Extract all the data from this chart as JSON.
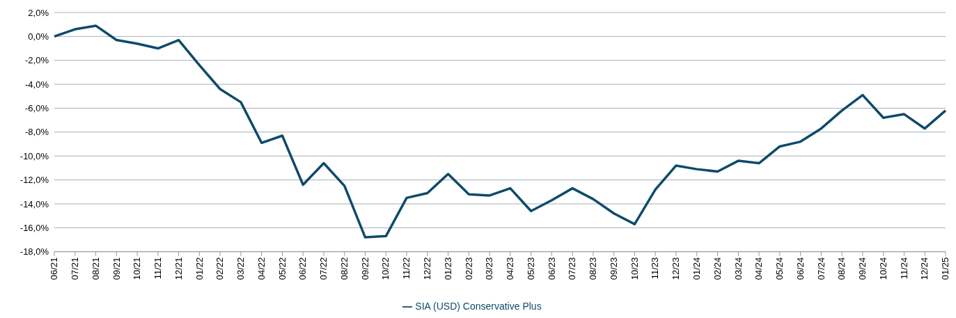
{
  "chart_data": {
    "type": "line",
    "categories": [
      "06/21",
      "07/21",
      "08/21",
      "09/21",
      "10/21",
      "11/21",
      "12/21",
      "01/22",
      "02/22",
      "03/22",
      "04/22",
      "05/22",
      "06/22",
      "07/22",
      "08/22",
      "09/22",
      "10/22",
      "11/22",
      "12/22",
      "01/23",
      "02/23",
      "03/23",
      "04/23",
      "05/23",
      "06/23",
      "07/23",
      "08/23",
      "09/23",
      "10/23",
      "11/23",
      "12/23",
      "01/24",
      "02/24",
      "03/24",
      "04/24",
      "05/24",
      "06/24",
      "07/24",
      "08/24",
      "09/24",
      "10/24",
      "11/24",
      "12/24",
      "01/25"
    ],
    "series": [
      {
        "name": "SIA (USD) Conservative Plus",
        "color": "#0e4a6b",
        "values": [
          0,
          0.6,
          0.9,
          -0.3,
          -0.6,
          -1.0,
          -0.3,
          -2.4,
          -4.4,
          -5.5,
          -8.9,
          -8.3,
          -12.4,
          -10.6,
          -12.5,
          -16.8,
          -16.7,
          -13.5,
          -13.1,
          -11.5,
          -13.2,
          -13.3,
          -12.7,
          -14.6,
          -13.7,
          -12.7,
          -13.6,
          -14.8,
          -15.7,
          -12.8,
          -10.8,
          -11.1,
          -11.3,
          -10.4,
          -10.6,
          -9.2,
          -8.8,
          -7.7,
          -6.2,
          -4.9,
          -6.8,
          -6.5,
          -7.7,
          -6.2
        ]
      }
    ],
    "ylim": [
      -18,
      2
    ],
    "yticks": [
      {
        "value": 2,
        "label": "2,0%"
      },
      {
        "value": 0,
        "label": "0,0%"
      },
      {
        "value": -2,
        "label": "-2,0%"
      },
      {
        "value": -4,
        "label": "-4,0%"
      },
      {
        "value": -6,
        "label": "-6,0%"
      },
      {
        "value": -8,
        "label": "-8,0%"
      },
      {
        "value": -10,
        "label": "-10,0%"
      },
      {
        "value": -12,
        "label": "-12,0%"
      },
      {
        "value": -14,
        "label": "-14,0%"
      },
      {
        "value": -16,
        "label": "-16,0%"
      },
      {
        "value": -18,
        "label": "-18,0%"
      }
    ],
    "grid": "y",
    "legend": "bottom",
    "marker": "none",
    "line_style": "solid"
  }
}
